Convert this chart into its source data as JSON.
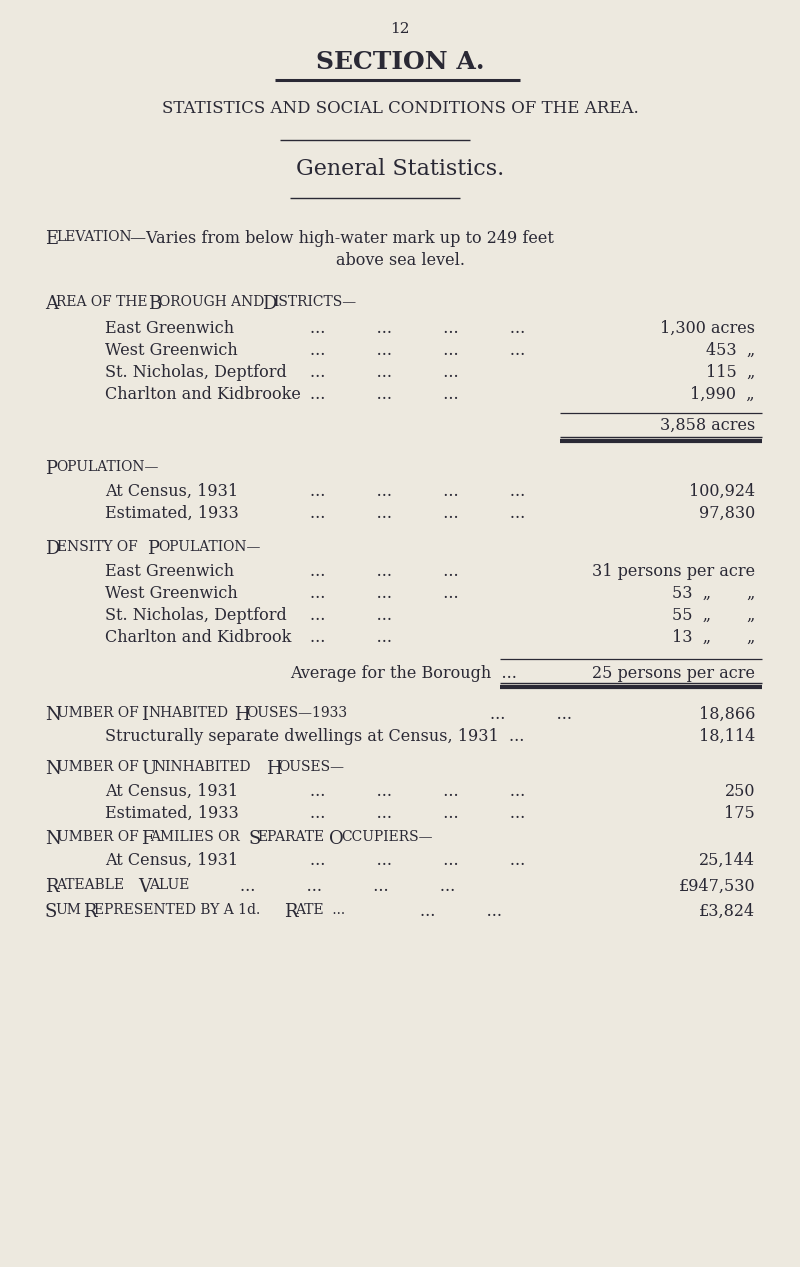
{
  "page_number": "12",
  "bg_color": "#ede9df",
  "text_color": "#2a2935",
  "title1": "SECTION A.",
  "title2": "STATISTICS AND SOCIAL CONDITIONS OF THE AREA.",
  "title3": "General Statistics.",
  "area_rows": [
    [
      "East Greenwich",
      "...",
      "...",
      "...",
      "...",
      "1,300 acres"
    ],
    [
      "West Greenwich",
      "...",
      "...",
      "...",
      "...",
      "453  „"
    ],
    [
      "St. Nicholas, Deptford",
      "...",
      "...",
      "...",
      "",
      "115  „"
    ],
    [
      "Charlton and Kidbrooke",
      "...",
      "...",
      "...",
      "",
      "1,990  „"
    ]
  ],
  "area_total": "3,858 acres",
  "pop_rows": [
    [
      "At Census, 1931",
      "...",
      "...",
      "...",
      "...",
      "100,924"
    ],
    [
      "Estimated, 1933",
      "...",
      "...",
      "...",
      "...",
      "97,830"
    ]
  ],
  "dens_rows": [
    [
      "East Greenwich",
      "...",
      "...",
      "...",
      "31 persons per acre"
    ],
    [
      "West Greenwich",
      "...",
      "...",
      "...",
      "53  „       „"
    ],
    [
      "St. Nicholas, Deptford",
      "...",
      "...",
      "",
      "55  „       „"
    ],
    [
      "Charlton and Kidbrook",
      "...",
      "...",
      "",
      "13  „       „"
    ]
  ],
  "dens_avg_val": "25 persons per acre",
  "inh_val1": "18,866",
  "inh_val2": "18,114",
  "uninh_rows": [
    [
      "At Census, 1931",
      "...",
      "...",
      "...",
      "...",
      "250"
    ],
    [
      "Estimated, 1933",
      "...",
      "...",
      "...",
      "...",
      "175"
    ]
  ],
  "fam_val": "25,144",
  "rateable_val": "£947,530",
  "sum_val": "£3,824"
}
